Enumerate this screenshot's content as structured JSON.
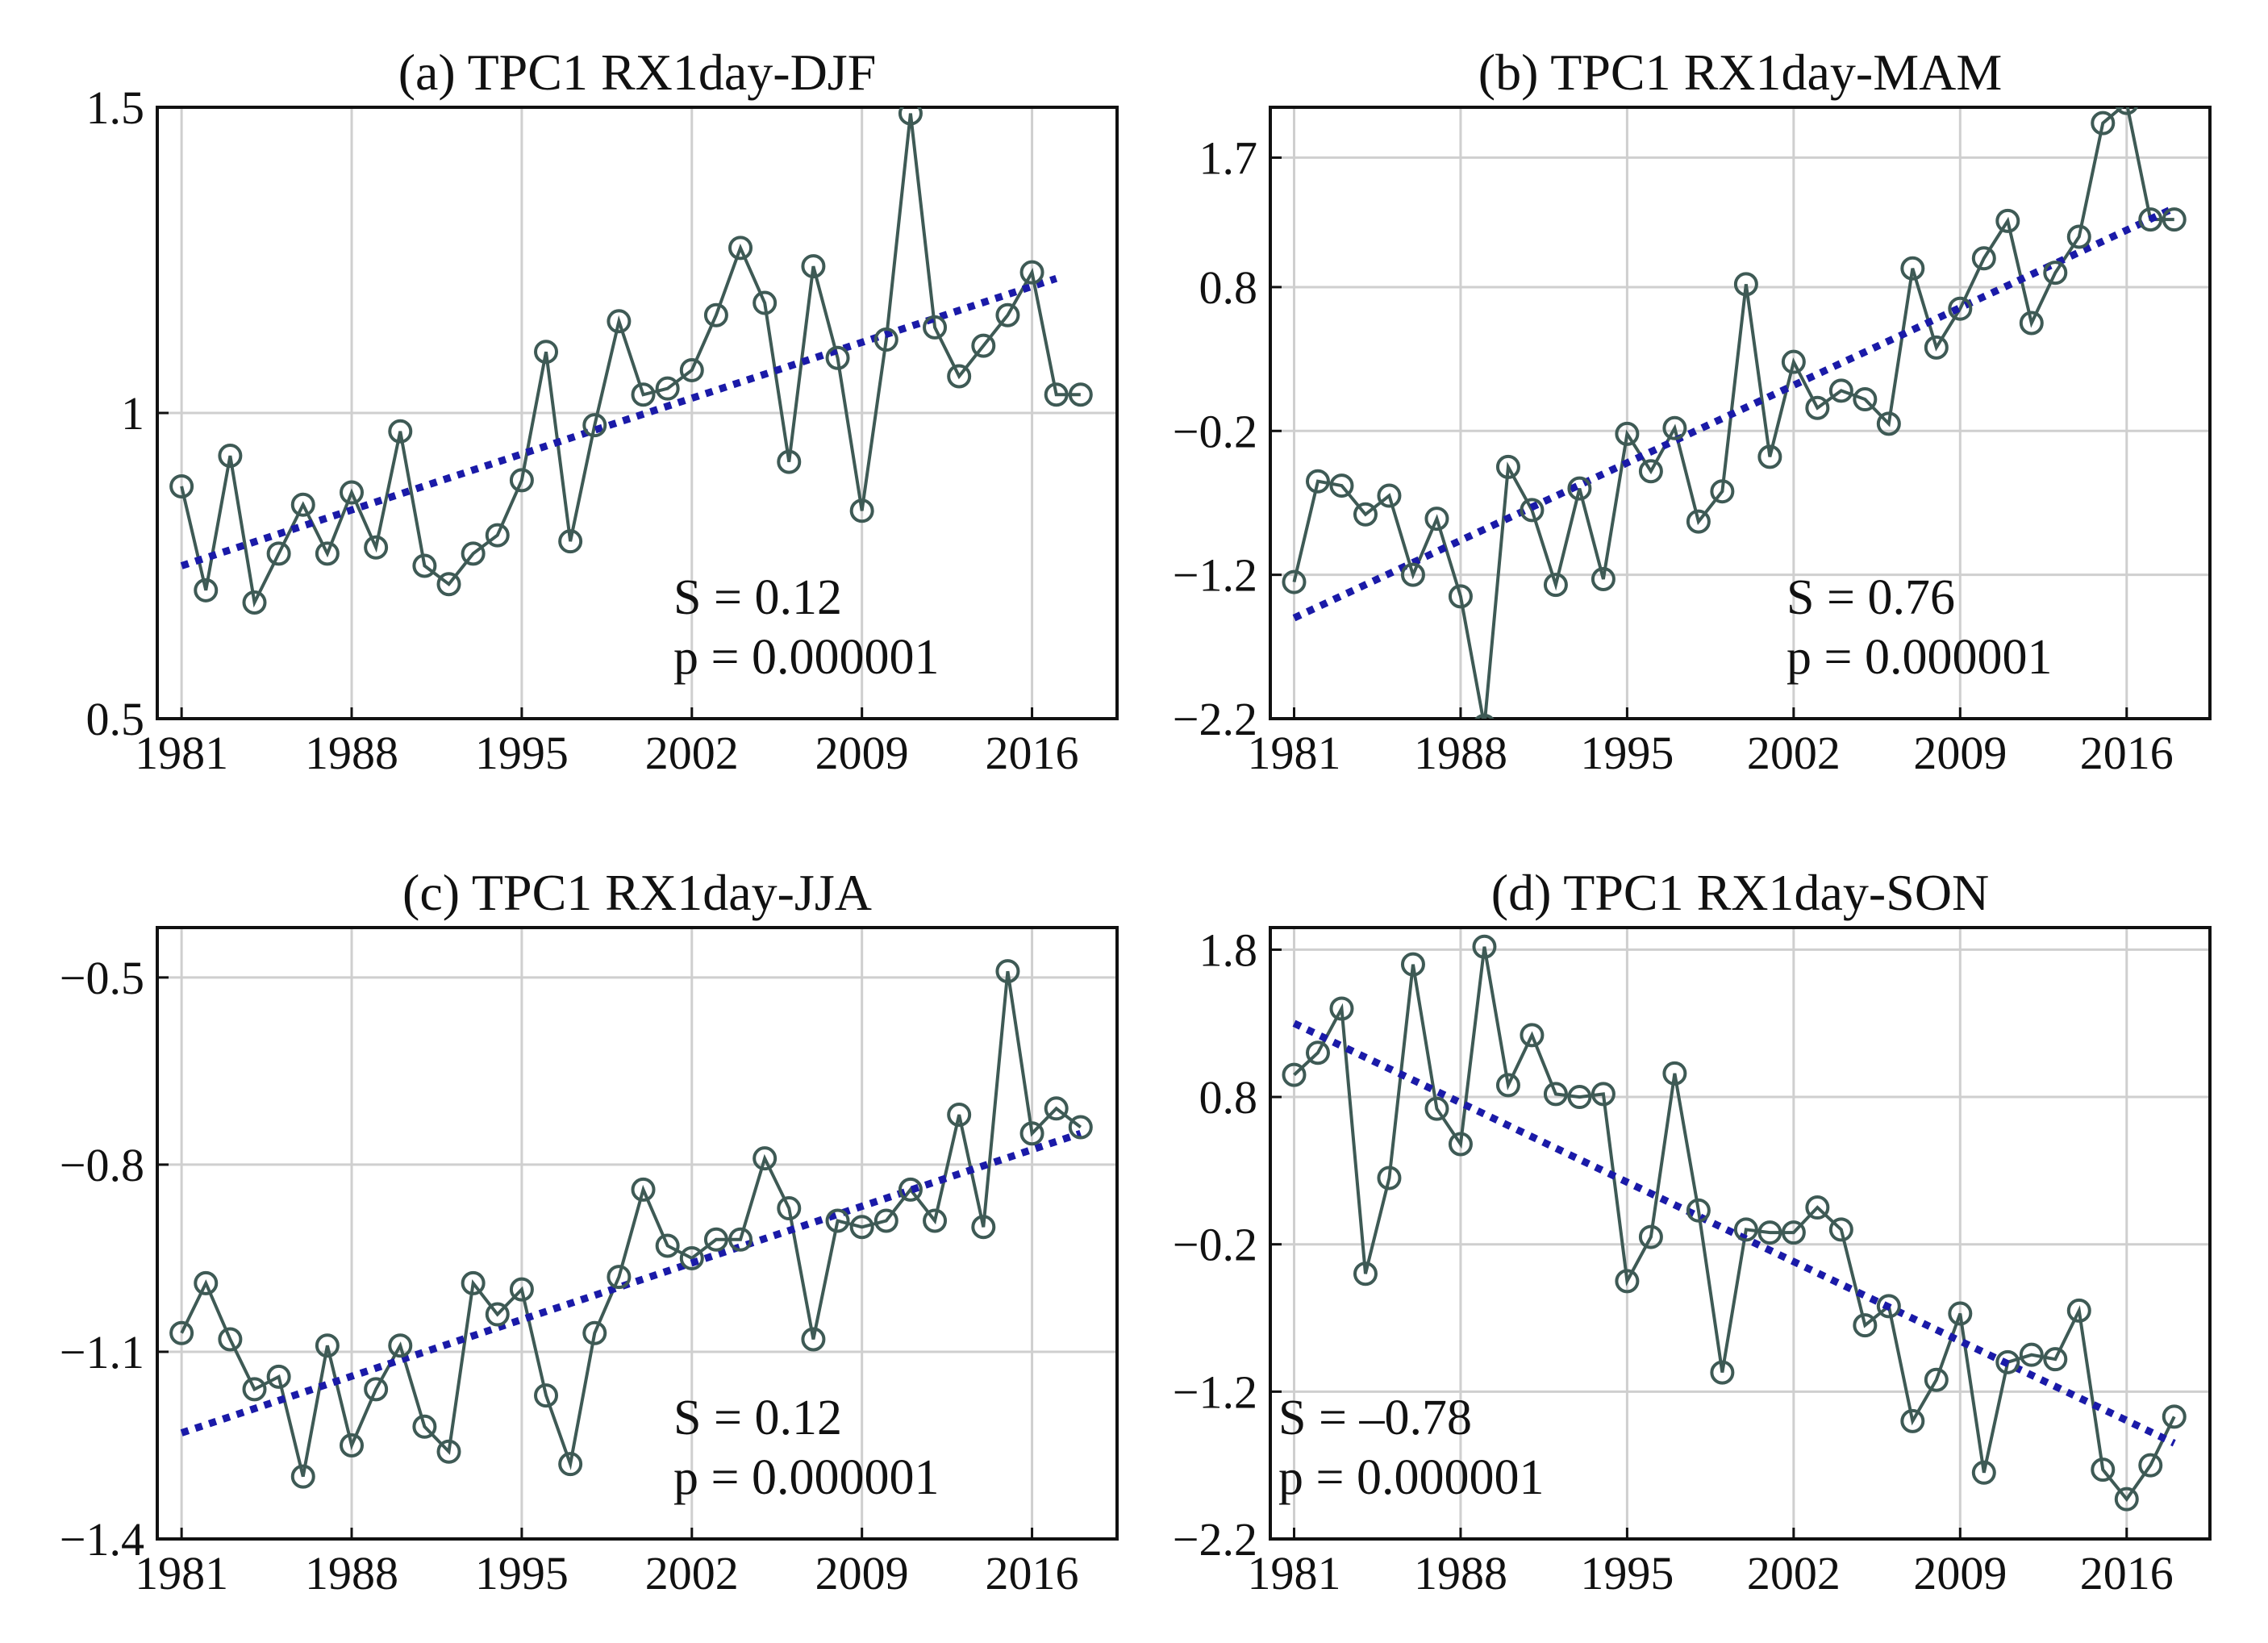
{
  "colors": {
    "series": "#3e5a55",
    "trend": "#1a1aa8",
    "grid": "#cfcfcf",
    "axis": "#111111"
  },
  "chart_data": [
    {
      "id": "a",
      "type": "line",
      "title": "(a) TPC1 RX1day-DJF",
      "xlabel": "",
      "ylabel": "",
      "xlim": [
        1980,
        2019.5
      ],
      "ylim": [
        0.5,
        1.5
      ],
      "xticks": [
        1981,
        1988,
        1995,
        2002,
        2009,
        2016
      ],
      "yticks": [
        0.5,
        1,
        1.5
      ],
      "ytick_labels": [
        "0.5",
        "1",
        "1.5"
      ],
      "grid": true,
      "x": [
        1981,
        1982,
        1983,
        1984,
        1985,
        1986,
        1987,
        1988,
        1989,
        1990,
        1991,
        1992,
        1993,
        1994,
        1995,
        1996,
        1997,
        1998,
        1999,
        2000,
        2001,
        2002,
        2003,
        2004,
        2005,
        2006,
        2007,
        2008,
        2009,
        2010,
        2011,
        2012,
        2013,
        2014,
        2015,
        2016,
        2017,
        2018
      ],
      "series": [
        {
          "name": "TPC1",
          "values": [
            0.88,
            0.71,
            0.93,
            0.69,
            0.77,
            0.85,
            0.77,
            0.87,
            0.78,
            0.97,
            0.75,
            0.72,
            0.77,
            0.8,
            0.89,
            1.1,
            0.79,
            0.98,
            1.15,
            1.03,
            1.04,
            1.07,
            1.16,
            1.27,
            1.18,
            0.92,
            1.24,
            1.09,
            0.84,
            1.12,
            1.49,
            1.14,
            1.06,
            1.11,
            1.16,
            1.23,
            1.03,
            1.03
          ]
        },
        {
          "name": "trend",
          "values": [
            0.75,
            1.22
          ],
          "x": [
            1981,
            2017
          ]
        }
      ],
      "annotations": [
        "S = 0.12",
        "p = 0.000001"
      ],
      "annotation_position": "bottom-right"
    },
    {
      "id": "b",
      "type": "line",
      "title": "(b) TPC1 RX1day-MAM",
      "xlabel": "",
      "ylabel": "",
      "xlim": [
        1980,
        2019.5
      ],
      "ylim": [
        -2.2,
        2.05
      ],
      "xticks": [
        1981,
        1988,
        1995,
        2002,
        2009,
        2016
      ],
      "yticks": [
        -2.2,
        -1.2,
        -0.2,
        0.8,
        1.7
      ],
      "ytick_labels": [
        "−2.2",
        "−1.2",
        "−0.2",
        "0.8",
        "1.7"
      ],
      "grid": true,
      "x": [
        1981,
        1982,
        1983,
        1984,
        1985,
        1986,
        1987,
        1988,
        1989,
        1990,
        1991,
        1992,
        1993,
        1994,
        1995,
        1996,
        1997,
        1998,
        1999,
        2000,
        2001,
        2002,
        2003,
        2004,
        2005,
        2006,
        2007,
        2008,
        2009,
        2010,
        2011,
        2012,
        2013,
        2014,
        2015,
        2016,
        2017,
        2018
      ],
      "series": [
        {
          "name": "TPC1",
          "values": [
            -1.25,
            -0.55,
            -0.58,
            -0.78,
            -0.65,
            -1.2,
            -0.81,
            -1.35,
            -2.25,
            -0.45,
            -0.75,
            -1.27,
            -0.6,
            -1.23,
            -0.22,
            -0.48,
            -0.18,
            -0.83,
            -0.62,
            0.82,
            -0.38,
            0.28,
            -0.04,
            0.08,
            0.02,
            -0.15,
            0.93,
            0.38,
            0.65,
            1.0,
            1.26,
            0.55,
            0.9,
            1.15,
            1.94,
            2.08,
            1.27,
            1.27
          ]
        },
        {
          "name": "trend",
          "values": [
            -1.5,
            1.35
          ],
          "x": [
            1981,
            2018
          ]
        }
      ],
      "annotations": [
        "S = 0.76",
        "p = 0.000001"
      ],
      "annotation_position": "bottom-right"
    },
    {
      "id": "c",
      "type": "line",
      "title": "(c) TPC1 RX1day-JJA",
      "xlabel": "",
      "ylabel": "",
      "xlim": [
        1980,
        2019.5
      ],
      "ylim": [
        -1.4,
        -0.42
      ],
      "xticks": [
        1981,
        1988,
        1995,
        2002,
        2009,
        2016
      ],
      "yticks": [
        -1.4,
        -1.1,
        -0.8,
        -0.5
      ],
      "ytick_labels": [
        "−1.4",
        "−1.1",
        "−0.8",
        "−0.5"
      ],
      "grid": true,
      "x": [
        1981,
        1982,
        1983,
        1984,
        1985,
        1986,
        1987,
        1988,
        1989,
        1990,
        1991,
        1992,
        1993,
        1994,
        1995,
        1996,
        1997,
        1998,
        1999,
        2000,
        2001,
        2002,
        2003,
        2004,
        2005,
        2006,
        2007,
        2008,
        2009,
        2010,
        2011,
        2012,
        2013,
        2014,
        2015,
        2016,
        2017,
        2018
      ],
      "series": [
        {
          "name": "TPC1",
          "values": [
            -1.07,
            -0.99,
            -1.08,
            -1.16,
            -1.14,
            -1.3,
            -1.09,
            -1.25,
            -1.16,
            -1.09,
            -1.22,
            -1.26,
            -0.99,
            -1.04,
            -1.0,
            -1.17,
            -1.28,
            -1.07,
            -0.98,
            -0.84,
            -0.93,
            -0.95,
            -0.92,
            -0.92,
            -0.79,
            -0.87,
            -1.08,
            -0.89,
            -0.9,
            -0.89,
            -0.84,
            -0.89,
            -0.72,
            -0.9,
            -0.49,
            -0.75,
            -0.71,
            -0.74
          ]
        },
        {
          "name": "trend",
          "values": [
            -1.23,
            -0.75
          ],
          "x": [
            1981,
            2018
          ]
        }
      ],
      "annotations": [
        "S = 0.12",
        "p = 0.000001"
      ],
      "annotation_position": "bottom-right"
    },
    {
      "id": "d",
      "type": "line",
      "title": "(d) TPC1 RX1day-SON",
      "xlabel": "",
      "ylabel": "",
      "xlim": [
        1980,
        2019.5
      ],
      "ylim": [
        -2.2,
        1.95
      ],
      "xticks": [
        1981,
        1988,
        1995,
        2002,
        2009,
        2016
      ],
      "yticks": [
        -2.2,
        -1.2,
        -0.2,
        0.8,
        1.8
      ],
      "ytick_labels": [
        "−2.2",
        "−1.2",
        "−0.2",
        "0.8",
        "1.8"
      ],
      "grid": true,
      "x": [
        1981,
        1982,
        1983,
        1984,
        1985,
        1986,
        1987,
        1988,
        1989,
        1990,
        1991,
        1992,
        1993,
        1994,
        1995,
        1996,
        1997,
        1998,
        1999,
        2000,
        2001,
        2002,
        2003,
        2004,
        2005,
        2006,
        2007,
        2008,
        2009,
        2010,
        2011,
        2012,
        2013,
        2014,
        2015,
        2016,
        2017,
        2018
      ],
      "series": [
        {
          "name": "TPC1",
          "values": [
            0.95,
            1.1,
            1.4,
            -0.4,
            0.25,
            1.7,
            0.72,
            0.48,
            1.82,
            0.88,
            1.22,
            0.82,
            0.8,
            0.82,
            -0.45,
            -0.15,
            0.96,
            0.03,
            -1.07,
            -0.1,
            -0.12,
            -0.12,
            0.05,
            -0.1,
            -0.75,
            -0.62,
            -1.4,
            -1.12,
            -0.67,
            -1.75,
            -1.0,
            -0.95,
            -0.98,
            -0.65,
            -1.73,
            -1.93,
            -1.7,
            -1.37
          ]
        },
        {
          "name": "trend",
          "values": [
            1.3,
            -1.55
          ],
          "x": [
            1981,
            2018
          ]
        }
      ],
      "annotations": [
        "S = –0.78",
        "p = 0.000001"
      ],
      "annotation_position": "bottom-left"
    }
  ]
}
